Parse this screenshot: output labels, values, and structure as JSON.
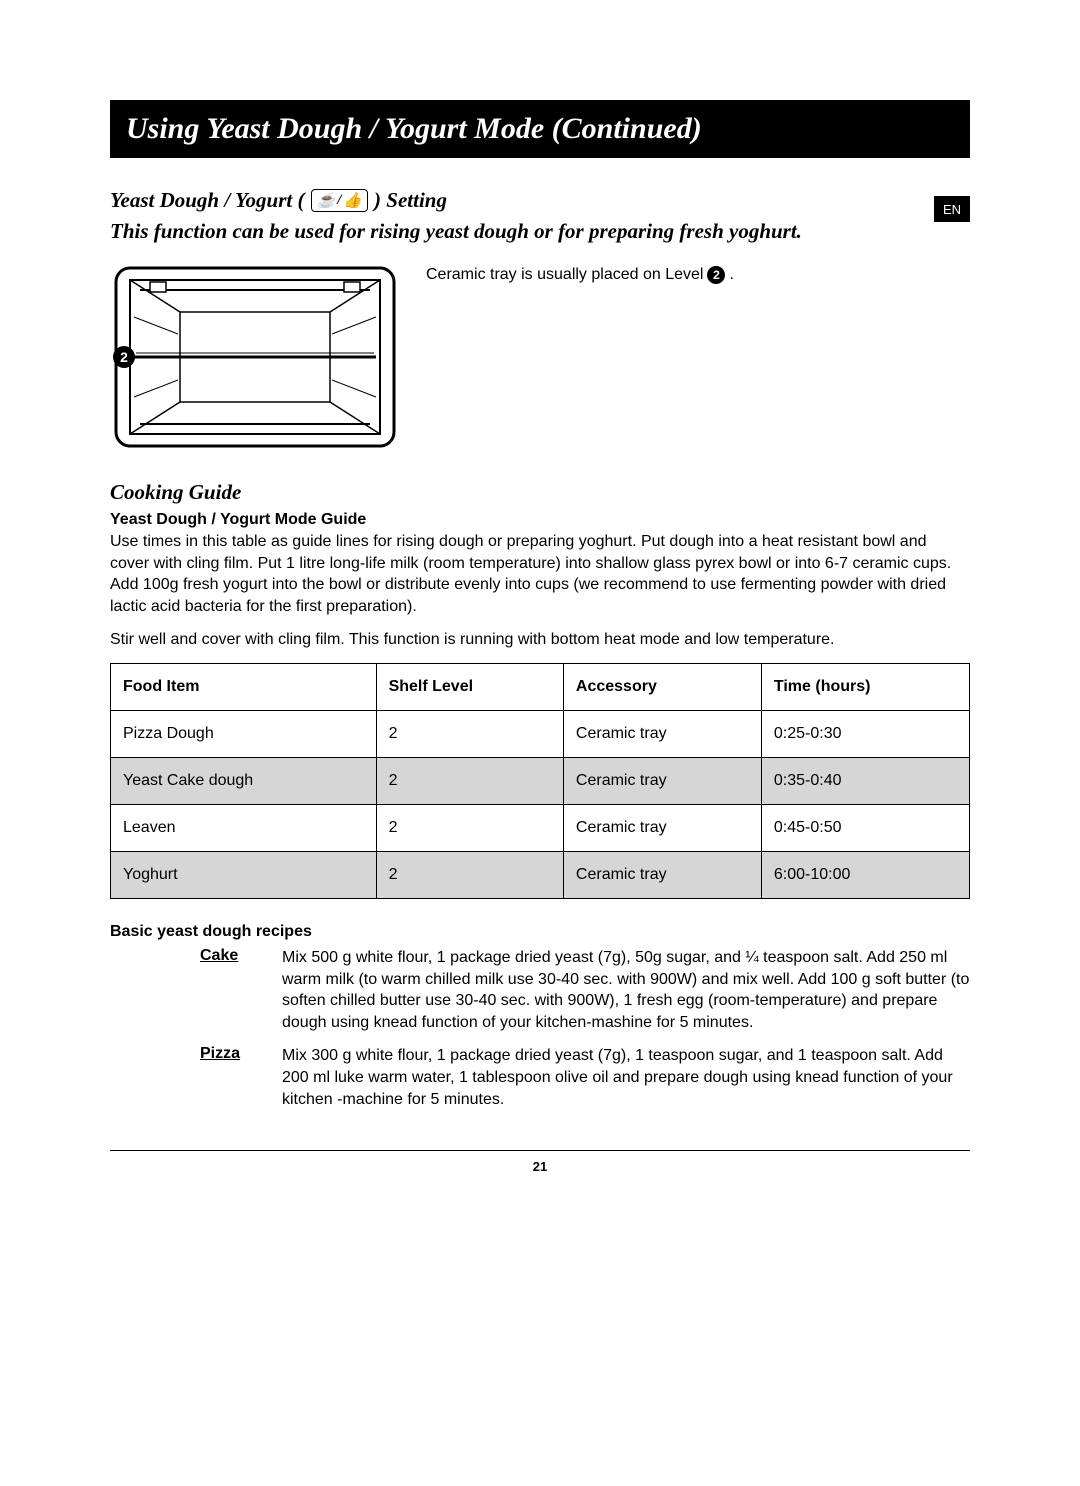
{
  "lang_tab": "EN",
  "title": "Using Yeast Dough / Yogurt Mode (Continued)",
  "setting": {
    "prefix": "Yeast Dough / Yogurt (",
    "suffix": ") Setting",
    "icon1": "☕",
    "icon2": "👍",
    "intro": "This function can be used for rising yeast dough or for preparing fresh yoghurt."
  },
  "tray_note": {
    "text_before": "Ceramic tray is usually placed on Level",
    "level": "2",
    "text_after": "."
  },
  "diagram": {
    "level_badge": "2"
  },
  "cooking_guide_heading": "Cooking Guide",
  "guide_subhead": "Yeast Dough / Yogurt Mode Guide",
  "guide_para1": "Use times in this table as guide lines for rising dough or preparing yoghurt. Put dough into a heat resistant bowl and cover with cling film. Put 1 litre long-life milk (room temperature) into shallow glass pyrex bowl or into 6-7 ceramic cups. Add 100g fresh yogurt into the bowl or distribute evenly into cups (we recommend to use fermenting powder with dried lactic acid bacteria for the first preparation).",
  "guide_para2": "Stir well and cover with cling film. This function is running with bottom heat mode and low temperature.",
  "table": {
    "columns": [
      "Food Item",
      "Shelf Level",
      "Accessory",
      "Time (hours)"
    ],
    "rows": [
      {
        "cells": [
          "Pizza Dough",
          "2",
          "Ceramic tray",
          "0:25-0:30"
        ],
        "shaded": false
      },
      {
        "cells": [
          "Yeast Cake dough",
          "2",
          "Ceramic tray",
          "0:35-0:40"
        ],
        "shaded": true
      },
      {
        "cells": [
          "Leaven",
          "2",
          "Ceramic tray",
          "0:45-0:50"
        ],
        "shaded": false
      },
      {
        "cells": [
          "Yoghurt",
          "2",
          "Ceramic tray",
          "6:00-10:00"
        ],
        "shaded": true
      }
    ]
  },
  "recipes_heading": "Basic yeast dough recipes",
  "recipes": [
    {
      "label": "Cake",
      "text": "Mix 500 g white flour, 1 package dried yeast (7g), 50g sugar, and ¼ teaspoon salt. Add 250 ml warm milk (to warm chilled milk use 30-40 sec. with 900W) and mix well. Add 100 g soft butter (to soften chilled butter use 30-40 sec. with 900W), 1 fresh egg (room-temperature) and prepare dough using knead function of your kitchen-mashine for 5 minutes."
    },
    {
      "label": "Pizza",
      "text": "Mix 300 g white flour, 1 package dried yeast (7g), 1 teaspoon sugar, and 1 teaspoon salt. Add 200 ml luke warm water, 1 tablespoon olive oil and prepare dough using knead function of your kitchen -machine for 5 minutes."
    }
  ],
  "page_number": "21"
}
